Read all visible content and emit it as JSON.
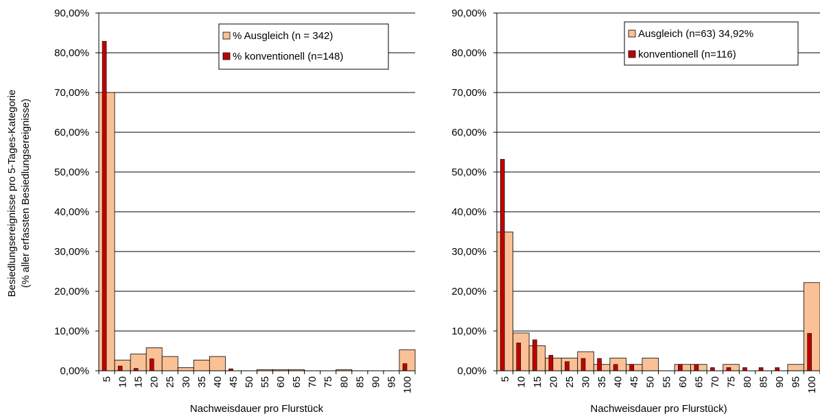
{
  "colors": {
    "ausgleich": "#fbc196",
    "konventionell": "#c00000"
  },
  "chart_data": [
    {
      "type": "bar",
      "categories": [
        "5",
        "10",
        "15",
        "20",
        "25",
        "30",
        "35",
        "40",
        "45",
        "50",
        "55",
        "60",
        "65",
        "70",
        "75",
        "80",
        "85",
        "90",
        "95",
        "100"
      ],
      "series": [
        {
          "name": "% Ausgleich (n = 342)",
          "values": [
            70.0,
            2.7,
            4.2,
            5.8,
            3.6,
            0.8,
            2.7,
            3.6,
            0.0,
            0.0,
            0.3,
            0.3,
            0.3,
            0.0,
            0.0,
            0.3,
            0.0,
            0.0,
            0.0,
            5.3
          ]
        },
        {
          "name": "% konventionell (n=148)",
          "values": [
            82.9,
            1.2,
            0.6,
            3.0,
            0.0,
            0.0,
            0.0,
            0.0,
            0.5,
            0.0,
            0.0,
            0.0,
            0.0,
            0.0,
            0.0,
            0.0,
            0.0,
            0.0,
            0.0,
            1.8
          ]
        }
      ],
      "yticks": [
        "0,00%",
        "10,00%",
        "20,00%",
        "30,00%",
        "40,00%",
        "50,00%",
        "60,00%",
        "70,00%",
        "80,00%",
        "90,00%"
      ],
      "ylim": [
        0,
        90
      ],
      "xlabel": "Nachweisdauer  pro Flurstück",
      "ylabel_lines": [
        "Besiedlungsereignisse pro 5-Tages-Kategorie",
        "(% aller erfassten Besiedlungsereignisse)"
      ],
      "legend_placement": "top-right",
      "grid": true
    },
    {
      "type": "bar",
      "categories": [
        "5",
        "10",
        "15",
        "20",
        "25",
        "30",
        "35",
        "40",
        "45",
        "50",
        "55",
        "60",
        "65",
        "70",
        "75",
        "80",
        "85",
        "90",
        "95",
        "100"
      ],
      "series": [
        {
          "name": "Ausgleich (n=63) 34,92%",
          "values": [
            34.9,
            9.5,
            6.3,
            3.2,
            3.2,
            4.8,
            1.6,
            3.2,
            1.6,
            3.2,
            0.0,
            1.6,
            1.6,
            0.0,
            1.6,
            0.0,
            0.0,
            0.0,
            1.6,
            22.2
          ]
        },
        {
          "name": "konventionell (n=116)",
          "values": [
            53.2,
            7.0,
            7.8,
            3.9,
            2.3,
            3.1,
            3.1,
            1.6,
            1.6,
            0.0,
            0.0,
            1.6,
            1.6,
            0.8,
            0.8,
            0.8,
            0.8,
            0.8,
            0.0,
            9.4
          ]
        }
      ],
      "yticks": [
        "0,00%",
        "10,00%",
        "20,00%",
        "30,00%",
        "40,00%",
        "50,00%",
        "60,00%",
        "70,00%",
        "80,00%",
        "90,00%"
      ],
      "ylim": [
        0,
        90
      ],
      "xlabel": "Nachweisdauer  pro Flurstück)",
      "legend_placement": "top-right",
      "grid": true
    }
  ]
}
